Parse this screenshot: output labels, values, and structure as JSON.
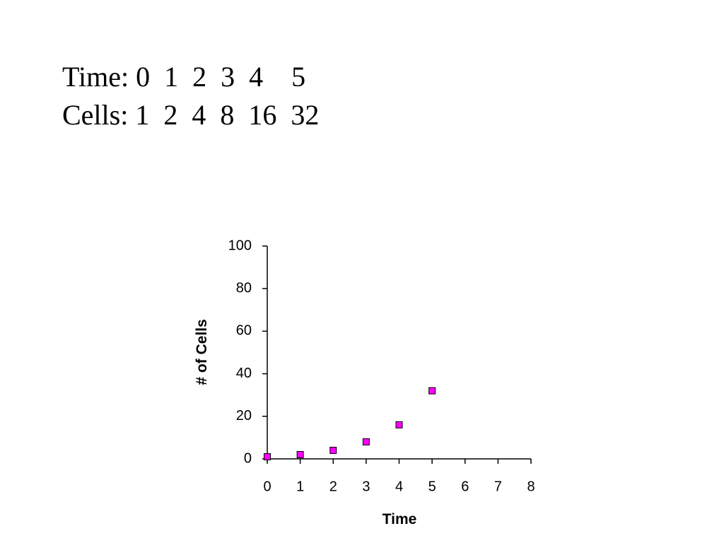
{
  "text_lines": [
    "Time: 0  1  2  3  4    5",
    "Cells: 1  2  4  8  16  32"
  ],
  "chart_data": {
    "type": "scatter",
    "x": [
      0,
      1,
      2,
      3,
      4,
      5
    ],
    "values": [
      1,
      2,
      4,
      8,
      16,
      32
    ],
    "color": "#ff00ff",
    "xlabel": "Time",
    "ylabel": "# of Cells",
    "xlim": [
      0,
      8
    ],
    "xticks": [
      0,
      1,
      2,
      3,
      4,
      5,
      6,
      7,
      8
    ],
    "ylim": [
      0,
      100
    ],
    "yticks": [
      0,
      20,
      40,
      60,
      80,
      100
    ],
    "grid": false
  }
}
